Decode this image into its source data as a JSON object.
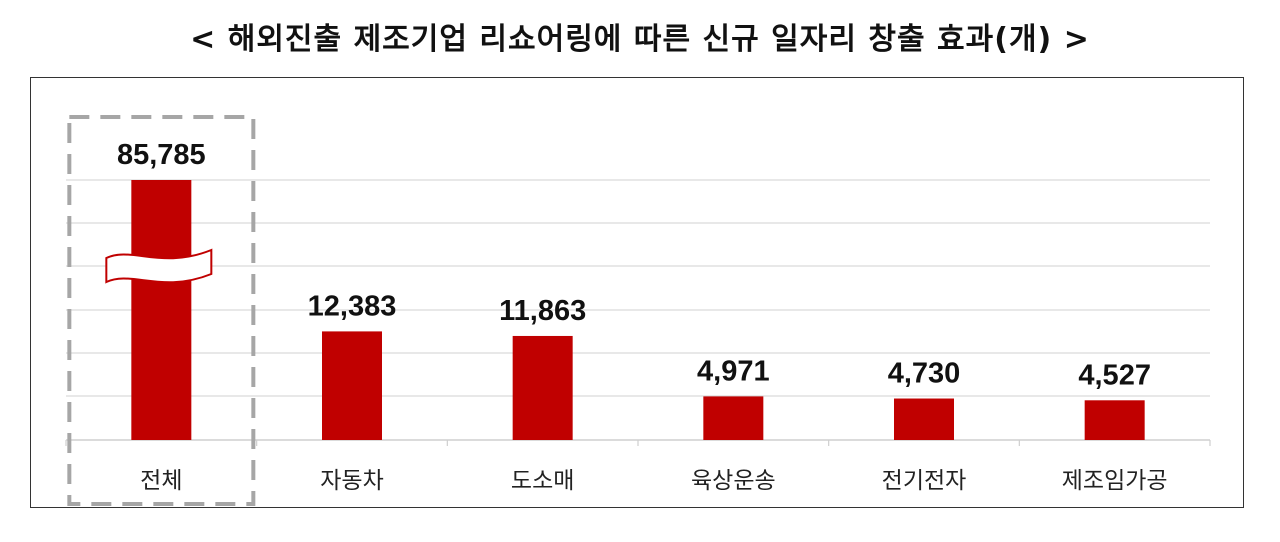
{
  "title": "< 해외진출 제조기업 리쇼어링에 따른 신규 일자리 창출 효과(개) >",
  "colors": {
    "bar": "#c00000",
    "grid": "#d9d9d9",
    "highlight_box": "#a6a6a6"
  },
  "chart_data": {
    "type": "bar",
    "title": "< 해외진출 제조기업 리쇼어링에 따른 신규 일자리 창출 효과(개) >",
    "categories": [
      "전체",
      "자동차",
      "도소매",
      "육상운송",
      "전기전자",
      "제조임가공"
    ],
    "values": [
      85785,
      12383,
      11863,
      4971,
      4730,
      4527
    ],
    "value_labels": [
      "85,785",
      "12,383",
      "11,863",
      "4,971",
      "4,730",
      "4,527"
    ],
    "axis_break": {
      "category": "전체"
    },
    "highlighted_category": "전체",
    "ylim": [
      0,
      24000
    ],
    "grid": true,
    "xlabel": "",
    "ylabel": ""
  }
}
